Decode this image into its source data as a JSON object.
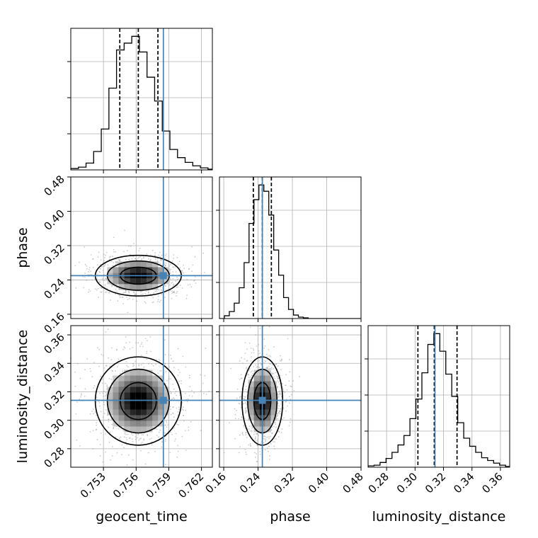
{
  "chart_data": {
    "type": "corner",
    "grid": true,
    "colors": {
      "truth": "#4682b4",
      "hist": "#000000",
      "grid": "#b0b0b0",
      "scatter": "#a0a0a0"
    },
    "parameters": [
      {
        "name": "geocent_time",
        "label": "geocent_time",
        "range": [
          0.75,
          0.763
        ],
        "ticks": [
          0.753,
          0.756,
          0.759,
          0.762
        ],
        "tick_labels": [
          "0.753",
          "0.756",
          "0.759",
          "0.762"
        ],
        "truth": 0.7585,
        "quantiles": [
          0.7545,
          0.7562,
          0.758
        ],
        "hist_x": [
          0.75,
          0.7507,
          0.7514,
          0.7521,
          0.7528,
          0.7535,
          0.7542,
          0.7549,
          0.7556,
          0.7563,
          0.757,
          0.7577,
          0.7584,
          0.7591,
          0.7598,
          0.7605,
          0.7612,
          0.7619,
          0.7626
        ],
        "hist_counts": [
          2,
          4,
          10,
          27,
          60,
          120,
          176,
          186,
          196,
          173,
          136,
          101,
          57,
          30,
          18,
          11,
          6,
          3,
          1
        ]
      },
      {
        "name": "phase",
        "label": "phase",
        "range": [
          0.15,
          0.48
        ],
        "ticks": [
          0.16,
          0.24,
          0.32,
          0.4,
          0.48
        ],
        "tick_labels": [
          "0.16",
          "0.24",
          "0.32",
          "0.40",
          "0.48"
        ],
        "truth": 0.25,
        "quantiles": [
          0.229,
          0.25,
          0.271
        ],
        "hist_x": [
          0.15,
          0.1615,
          0.173,
          0.1845,
          0.196,
          0.2075,
          0.219,
          0.2305,
          0.242,
          0.2535,
          0.265,
          0.2765,
          0.288,
          0.2995,
          0.311,
          0.3225,
          0.334,
          0.3455,
          0.357,
          0.3685,
          0.38,
          0.3915,
          0.403,
          0.4145,
          0.426,
          0.4375,
          0.449,
          0.4605,
          0.472
        ],
        "hist_counts": [
          0,
          4,
          10,
          22,
          44,
          80,
          136,
          170,
          191,
          182,
          148,
          98,
          62,
          30,
          13,
          5,
          2,
          1,
          0,
          0,
          0,
          0,
          0,
          0,
          0,
          0,
          0,
          0,
          0
        ]
      },
      {
        "name": "luminosity_distance",
        "label": "luminosity_distance",
        "range": [
          0.267,
          0.3665
        ],
        "ticks": [
          0.28,
          0.3,
          0.32,
          0.34,
          0.36
        ],
        "tick_labels": [
          "0.28",
          "0.30",
          "0.32",
          "0.34",
          "0.36"
        ],
        "truth": 0.314,
        "quantiles": [
          0.302,
          0.3135,
          0.3295
        ],
        "hist_x": [
          0.267,
          0.2712,
          0.2754,
          0.2796,
          0.2838,
          0.288,
          0.2922,
          0.2964,
          0.3006,
          0.3048,
          0.309,
          0.3132,
          0.3174,
          0.3216,
          0.3258,
          0.33,
          0.3342,
          0.3384,
          0.3426,
          0.3468,
          0.351,
          0.3552,
          0.3594,
          0.3636
        ],
        "hist_counts": [
          2,
          3,
          7,
          13,
          22,
          33,
          47,
          72,
          101,
          140,
          182,
          198,
          172,
          138,
          105,
          66,
          43,
          31,
          22,
          14,
          10,
          6,
          3,
          1
        ]
      }
    ]
  }
}
